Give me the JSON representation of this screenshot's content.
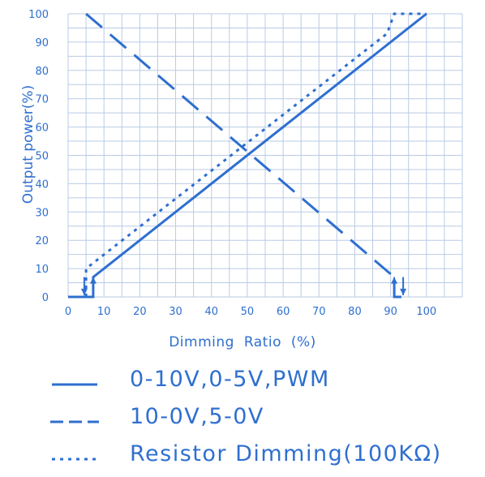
{
  "chart_data": {
    "type": "line",
    "xlabel": "Dimming  Ratio (%)",
    "ylabel": "Output power(%)",
    "xlim": [
      0,
      110
    ],
    "ylim": [
      0,
      100
    ],
    "x_ticks": [
      "0",
      "10",
      "20",
      "30",
      "40",
      "50",
      "60",
      "70",
      "80",
      "90",
      "100"
    ],
    "y_ticks": [
      "0",
      "10",
      "20",
      "30",
      "40",
      "50",
      "60",
      "70",
      "80",
      "90",
      "100"
    ],
    "grid": true,
    "colors": {
      "line": "#2e6fd0",
      "grid": "#b9cbe5",
      "text": "#2e6fd0"
    },
    "series": [
      {
        "name": "0-10V,0-5V,PWM",
        "style": "solid",
        "points": [
          [
            0,
            0
          ],
          [
            7,
            0
          ],
          [
            7,
            7
          ],
          [
            100,
            100
          ]
        ]
      },
      {
        "name": "10-0V,5-0V",
        "style": "dashed",
        "points": [
          [
            5,
            100
          ],
          [
            91,
            7
          ],
          [
            91,
            0
          ],
          [
            95,
            0
          ]
        ]
      },
      {
        "name": "Resistor Dimming(100KΩ)",
        "style": "dotted",
        "points": [
          [
            5,
            0
          ],
          [
            5,
            10
          ],
          [
            89,
            93
          ],
          [
            91,
            100
          ],
          [
            100,
            100
          ]
        ]
      }
    ]
  },
  "legend": [
    {
      "label": "0-10V,0-5V,PWM",
      "style": "solid"
    },
    {
      "label": "10-0V,5-0V",
      "style": "dashed"
    },
    {
      "label": "Resistor Dimming(100KΩ)",
      "style": "dotted"
    }
  ]
}
